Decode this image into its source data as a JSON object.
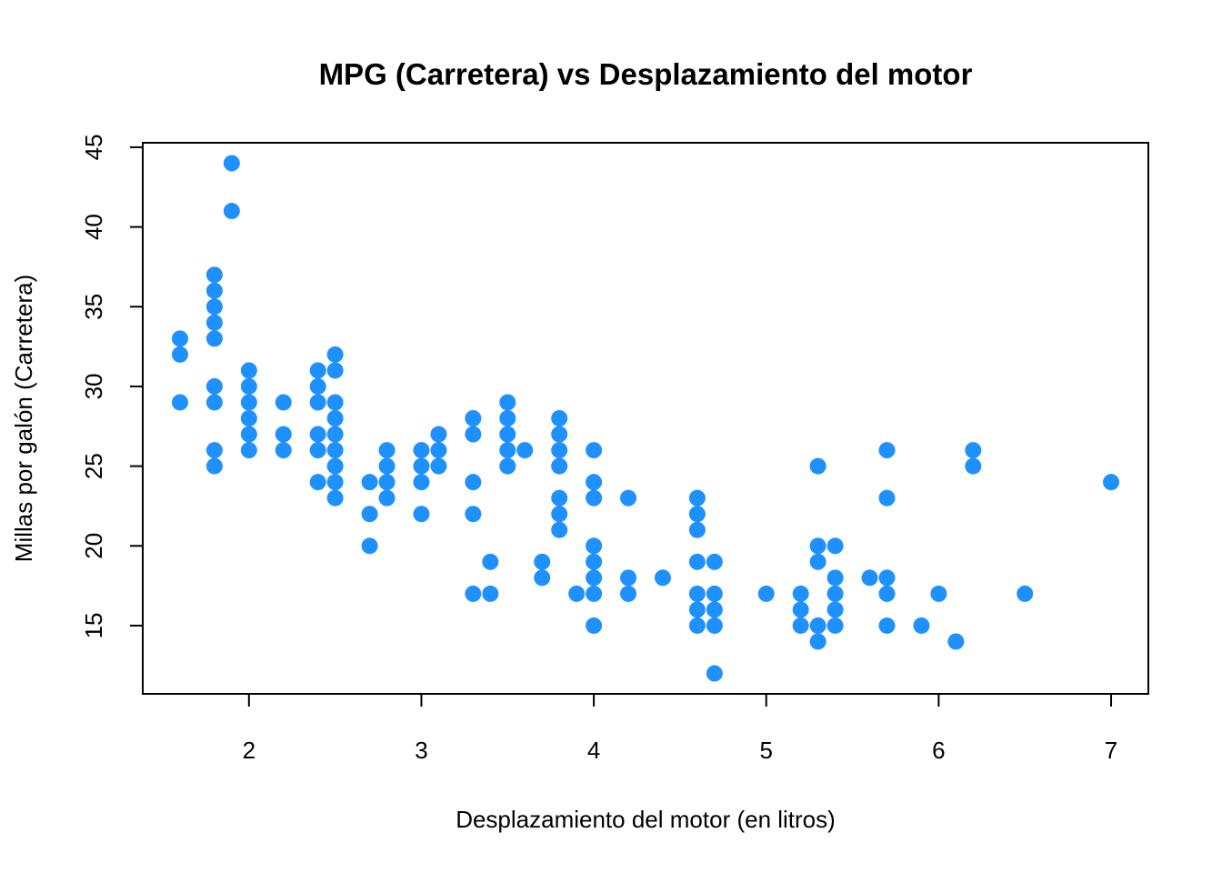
{
  "chart_data": {
    "type": "scatter",
    "title": "MPG (Carretera) vs Desplazamiento del motor",
    "xlabel": "Desplazamiento del motor (en litros)",
    "ylabel": "Millas por galón (Carretera)",
    "xlim": [
      1.6,
      7.0
    ],
    "ylim": [
      12,
      44
    ],
    "x_ticks": [
      2,
      3,
      4,
      5,
      6,
      7
    ],
    "y_ticks": [
      15,
      20,
      25,
      30,
      35,
      40,
      45
    ],
    "grid": false,
    "point_color": "#1E90FF",
    "points": [
      [
        1.6,
        33
      ],
      [
        1.6,
        32
      ],
      [
        1.6,
        29
      ],
      [
        1.8,
        37
      ],
      [
        1.8,
        36
      ],
      [
        1.8,
        35
      ],
      [
        1.8,
        34
      ],
      [
        1.8,
        33
      ],
      [
        1.8,
        30
      ],
      [
        1.8,
        29
      ],
      [
        1.8,
        26
      ],
      [
        1.8,
        25
      ],
      [
        1.9,
        44
      ],
      [
        1.9,
        41
      ],
      [
        2.0,
        31
      ],
      [
        2.0,
        30
      ],
      [
        2.0,
        29
      ],
      [
        2.0,
        28
      ],
      [
        2.0,
        27
      ],
      [
        2.0,
        26
      ],
      [
        2.2,
        29
      ],
      [
        2.2,
        27
      ],
      [
        2.2,
        26
      ],
      [
        2.4,
        31
      ],
      [
        2.4,
        30
      ],
      [
        2.4,
        29
      ],
      [
        2.4,
        27
      ],
      [
        2.4,
        26
      ],
      [
        2.4,
        24
      ],
      [
        2.5,
        32
      ],
      [
        2.5,
        31
      ],
      [
        2.5,
        29
      ],
      [
        2.5,
        28
      ],
      [
        2.5,
        27
      ],
      [
        2.5,
        26
      ],
      [
        2.5,
        25
      ],
      [
        2.5,
        24
      ],
      [
        2.5,
        23
      ],
      [
        2.7,
        24
      ],
      [
        2.7,
        22
      ],
      [
        2.7,
        20
      ],
      [
        2.8,
        26
      ],
      [
        2.8,
        25
      ],
      [
        2.8,
        24
      ],
      [
        2.8,
        23
      ],
      [
        3.0,
        26
      ],
      [
        3.0,
        25
      ],
      [
        3.0,
        24
      ],
      [
        3.0,
        22
      ],
      [
        3.1,
        27
      ],
      [
        3.1,
        26
      ],
      [
        3.1,
        25
      ],
      [
        3.3,
        28
      ],
      [
        3.3,
        27
      ],
      [
        3.3,
        24
      ],
      [
        3.3,
        22
      ],
      [
        3.3,
        17
      ],
      [
        3.4,
        19
      ],
      [
        3.4,
        17
      ],
      [
        3.5,
        29
      ],
      [
        3.5,
        28
      ],
      [
        3.5,
        27
      ],
      [
        3.5,
        26
      ],
      [
        3.5,
        25
      ],
      [
        3.6,
        26
      ],
      [
        3.7,
        19
      ],
      [
        3.7,
        18
      ],
      [
        3.8,
        28
      ],
      [
        3.8,
        27
      ],
      [
        3.8,
        26
      ],
      [
        3.8,
        25
      ],
      [
        3.8,
        23
      ],
      [
        3.8,
        22
      ],
      [
        3.8,
        21
      ],
      [
        3.9,
        17
      ],
      [
        4.0,
        26
      ],
      [
        4.0,
        24
      ],
      [
        4.0,
        23
      ],
      [
        4.0,
        20
      ],
      [
        4.0,
        19
      ],
      [
        4.0,
        18
      ],
      [
        4.0,
        17
      ],
      [
        4.0,
        15
      ],
      [
        4.2,
        23
      ],
      [
        4.2,
        18
      ],
      [
        4.2,
        17
      ],
      [
        4.4,
        18
      ],
      [
        4.6,
        23
      ],
      [
        4.6,
        22
      ],
      [
        4.6,
        21
      ],
      [
        4.6,
        19
      ],
      [
        4.6,
        17
      ],
      [
        4.6,
        16
      ],
      [
        4.6,
        15
      ],
      [
        4.7,
        19
      ],
      [
        4.7,
        17
      ],
      [
        4.7,
        16
      ],
      [
        4.7,
        15
      ],
      [
        4.7,
        12
      ],
      [
        5.0,
        17
      ],
      [
        5.2,
        17
      ],
      [
        5.2,
        16
      ],
      [
        5.2,
        15
      ],
      [
        5.3,
        25
      ],
      [
        5.3,
        20
      ],
      [
        5.3,
        19
      ],
      [
        5.3,
        15
      ],
      [
        5.3,
        14
      ],
      [
        5.4,
        20
      ],
      [
        5.4,
        18
      ],
      [
        5.4,
        17
      ],
      [
        5.4,
        16
      ],
      [
        5.4,
        15
      ],
      [
        5.6,
        18
      ],
      [
        5.7,
        26
      ],
      [
        5.7,
        23
      ],
      [
        5.7,
        18
      ],
      [
        5.7,
        17
      ],
      [
        5.7,
        15
      ],
      [
        5.9,
        15
      ],
      [
        6.0,
        17
      ],
      [
        6.1,
        14
      ],
      [
        6.2,
        26
      ],
      [
        6.2,
        25
      ],
      [
        6.5,
        17
      ],
      [
        7.0,
        24
      ]
    ]
  }
}
